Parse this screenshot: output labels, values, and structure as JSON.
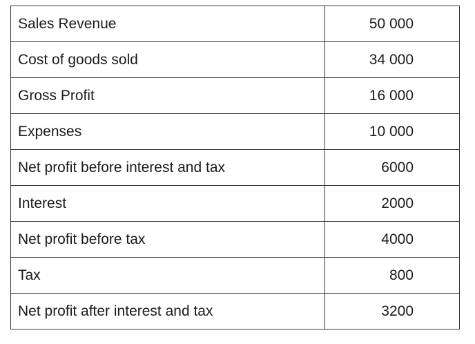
{
  "table": {
    "rows": [
      {
        "label": "Sales Revenue",
        "value": "50 000"
      },
      {
        "label": "Cost of goods sold",
        "value": "34 000"
      },
      {
        "label": "Gross Profit",
        "value": "16 000"
      },
      {
        "label": "Expenses",
        "value": "10 000"
      },
      {
        "label": "Net profit before interest and tax",
        "value": "6000"
      },
      {
        "label": "Interest",
        "value": "2000"
      },
      {
        "label": "Net profit before tax",
        "value": "4000"
      },
      {
        "label": "Tax",
        "value": "800"
      },
      {
        "label": "Net profit after interest and tax",
        "value": "3200"
      }
    ]
  }
}
